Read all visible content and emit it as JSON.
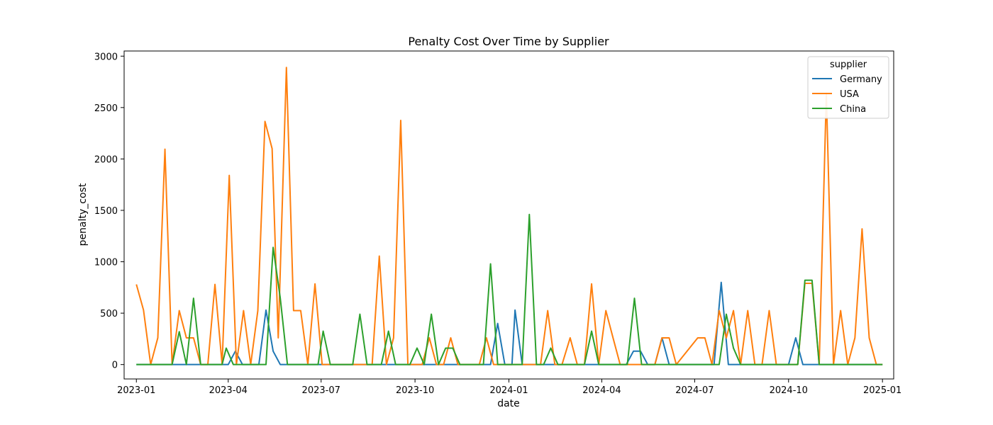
{
  "chart_data": {
    "type": "line",
    "title": "Penalty Cost Over Time by Supplier",
    "xlabel": "date",
    "ylabel": "penalty_cost",
    "xlim": [
      "2022-12-20",
      "2025-01-12"
    ],
    "ylim": [
      -140,
      3050
    ],
    "x_ticks": [
      "2023-01-01",
      "2023-04-01",
      "2023-07-01",
      "2023-10-01",
      "2024-01-01",
      "2024-04-01",
      "2024-07-01",
      "2024-10-01",
      "2025-01-01"
    ],
    "x_tick_labels": [
      "2023-01",
      "2023-04",
      "2023-07",
      "2023-10",
      "2024-01",
      "2024-04",
      "2024-07",
      "2024-10",
      "2025-01"
    ],
    "y_ticks": [
      0,
      500,
      1000,
      1500,
      2000,
      2500,
      3000
    ],
    "grid": false,
    "legend": {
      "title": "supplier",
      "position": "top-right"
    },
    "series": [
      {
        "name": "Germany",
        "color": "#1f77b4",
        "points": [
          [
            "2023-01-01",
            0
          ],
          [
            "2023-04-01",
            0
          ],
          [
            "2023-04-08",
            130
          ],
          [
            "2023-04-15",
            0
          ],
          [
            "2023-05-01",
            0
          ],
          [
            "2023-05-08",
            530
          ],
          [
            "2023-05-15",
            130
          ],
          [
            "2023-05-22",
            0
          ],
          [
            "2023-12-14",
            0
          ],
          [
            "2023-12-21",
            400
          ],
          [
            "2023-12-28",
            0
          ],
          [
            "2024-01-04",
            0
          ],
          [
            "2024-01-07",
            530
          ],
          [
            "2024-01-14",
            0
          ],
          [
            "2024-04-25",
            0
          ],
          [
            "2024-05-02",
            130
          ],
          [
            "2024-05-09",
            130
          ],
          [
            "2024-05-16",
            0
          ],
          [
            "2024-05-23",
            0
          ],
          [
            "2024-05-30",
            260
          ],
          [
            "2024-06-06",
            0
          ],
          [
            "2024-07-20",
            0
          ],
          [
            "2024-07-27",
            800
          ],
          [
            "2024-08-03",
            0
          ],
          [
            "2024-10-01",
            0
          ],
          [
            "2024-10-08",
            260
          ],
          [
            "2024-10-15",
            0
          ],
          [
            "2025-01-01",
            0
          ]
        ]
      },
      {
        "name": "USA",
        "color": "#ff7f0e",
        "points": [
          [
            "2023-01-01",
            780
          ],
          [
            "2023-01-08",
            530
          ],
          [
            "2023-01-15",
            0
          ],
          [
            "2023-01-22",
            260
          ],
          [
            "2023-01-29",
            2095
          ],
          [
            "2023-02-05",
            0
          ],
          [
            "2023-02-12",
            525
          ],
          [
            "2023-02-19",
            260
          ],
          [
            "2023-02-26",
            260
          ],
          [
            "2023-03-05",
            0
          ],
          [
            "2023-03-12",
            0
          ],
          [
            "2023-03-19",
            780
          ],
          [
            "2023-03-26",
            0
          ],
          [
            "2023-04-02",
            1840
          ],
          [
            "2023-04-09",
            0
          ],
          [
            "2023-04-16",
            525
          ],
          [
            "2023-04-23",
            0
          ],
          [
            "2023-04-30",
            525
          ],
          [
            "2023-05-07",
            2365
          ],
          [
            "2023-05-14",
            2100
          ],
          [
            "2023-05-20",
            260
          ],
          [
            "2023-05-28",
            2890
          ],
          [
            "2023-06-04",
            525
          ],
          [
            "2023-06-11",
            525
          ],
          [
            "2023-06-18",
            0
          ],
          [
            "2023-06-25",
            785
          ],
          [
            "2023-07-02",
            0
          ],
          [
            "2023-07-09",
            0
          ],
          [
            "2023-08-20",
            0
          ],
          [
            "2023-08-27",
            1055
          ],
          [
            "2023-09-03",
            0
          ],
          [
            "2023-09-10",
            260
          ],
          [
            "2023-09-17",
            2375
          ],
          [
            "2023-09-24",
            0
          ],
          [
            "2023-10-01",
            0
          ],
          [
            "2023-10-08",
            0
          ],
          [
            "2023-10-15",
            260
          ],
          [
            "2023-10-22",
            0
          ],
          [
            "2023-10-29",
            0
          ],
          [
            "2023-11-05",
            260
          ],
          [
            "2023-11-12",
            0
          ],
          [
            "2023-11-19",
            0
          ],
          [
            "2023-11-26",
            0
          ],
          [
            "2023-12-03",
            0
          ],
          [
            "2023-12-10",
            260
          ],
          [
            "2023-12-17",
            0
          ],
          [
            "2024-02-01",
            0
          ],
          [
            "2024-02-08",
            525
          ],
          [
            "2024-02-15",
            0
          ],
          [
            "2024-02-22",
            0
          ],
          [
            "2024-03-01",
            260
          ],
          [
            "2024-03-08",
            0
          ],
          [
            "2024-03-15",
            0
          ],
          [
            "2024-03-22",
            785
          ],
          [
            "2024-03-29",
            0
          ],
          [
            "2024-04-05",
            525
          ],
          [
            "2024-04-12",
            260
          ],
          [
            "2024-04-19",
            0
          ],
          [
            "2024-05-23",
            0
          ],
          [
            "2024-05-30",
            260
          ],
          [
            "2024-06-06",
            260
          ],
          [
            "2024-06-13",
            0
          ],
          [
            "2024-07-04",
            260
          ],
          [
            "2024-07-11",
            260
          ],
          [
            "2024-07-18",
            0
          ],
          [
            "2024-07-25",
            525
          ],
          [
            "2024-08-01",
            260
          ],
          [
            "2024-08-08",
            525
          ],
          [
            "2024-08-15",
            0
          ],
          [
            "2024-08-22",
            525
          ],
          [
            "2024-08-29",
            0
          ],
          [
            "2024-09-05",
            0
          ],
          [
            "2024-09-12",
            525
          ],
          [
            "2024-09-19",
            0
          ],
          [
            "2024-10-03",
            0
          ],
          [
            "2024-10-10",
            0
          ],
          [
            "2024-10-17",
            790
          ],
          [
            "2024-10-24",
            790
          ],
          [
            "2024-10-31",
            0
          ],
          [
            "2024-11-07",
            2640
          ],
          [
            "2024-11-14",
            0
          ],
          [
            "2024-11-21",
            525
          ],
          [
            "2024-11-28",
            0
          ],
          [
            "2024-12-05",
            260
          ],
          [
            "2024-12-12",
            1320
          ],
          [
            "2024-12-19",
            260
          ],
          [
            "2024-12-26",
            0
          ],
          [
            "2025-01-01",
            0
          ]
        ]
      },
      {
        "name": "China",
        "color": "#2ca02c",
        "points": [
          [
            "2023-01-01",
            0
          ],
          [
            "2023-02-05",
            0
          ],
          [
            "2023-02-12",
            320
          ],
          [
            "2023-02-19",
            0
          ],
          [
            "2023-02-26",
            645
          ],
          [
            "2023-03-05",
            0
          ],
          [
            "2023-03-26",
            0
          ],
          [
            "2023-03-30",
            160
          ],
          [
            "2023-04-06",
            0
          ],
          [
            "2023-05-08",
            0
          ],
          [
            "2023-05-15",
            1140
          ],
          [
            "2023-05-22",
            645
          ],
          [
            "2023-05-29",
            0
          ],
          [
            "2023-06-28",
            0
          ],
          [
            "2023-07-03",
            325
          ],
          [
            "2023-07-10",
            0
          ],
          [
            "2023-08-01",
            0
          ],
          [
            "2023-08-08",
            490
          ],
          [
            "2023-08-15",
            0
          ],
          [
            "2023-08-29",
            0
          ],
          [
            "2023-09-05",
            325
          ],
          [
            "2023-09-12",
            0
          ],
          [
            "2023-09-26",
            0
          ],
          [
            "2023-10-03",
            160
          ],
          [
            "2023-10-10",
            0
          ],
          [
            "2023-10-17",
            490
          ],
          [
            "2023-10-24",
            0
          ],
          [
            "2023-10-31",
            160
          ],
          [
            "2023-11-07",
            160
          ],
          [
            "2023-11-14",
            0
          ],
          [
            "2023-12-07",
            0
          ],
          [
            "2023-12-14",
            980
          ],
          [
            "2023-12-21",
            0
          ],
          [
            "2024-01-14",
            0
          ],
          [
            "2024-01-21",
            1460
          ],
          [
            "2024-01-28",
            0
          ],
          [
            "2024-02-04",
            0
          ],
          [
            "2024-02-11",
            160
          ],
          [
            "2024-02-18",
            0
          ],
          [
            "2024-03-15",
            0
          ],
          [
            "2024-03-22",
            325
          ],
          [
            "2024-03-29",
            0
          ],
          [
            "2024-04-26",
            0
          ],
          [
            "2024-05-03",
            645
          ],
          [
            "2024-05-10",
            0
          ],
          [
            "2024-07-25",
            0
          ],
          [
            "2024-08-01",
            490
          ],
          [
            "2024-08-08",
            160
          ],
          [
            "2024-08-15",
            0
          ],
          [
            "2024-10-10",
            0
          ],
          [
            "2024-10-17",
            820
          ],
          [
            "2024-10-24",
            820
          ],
          [
            "2024-10-31",
            0
          ],
          [
            "2025-01-01",
            0
          ]
        ]
      }
    ]
  }
}
